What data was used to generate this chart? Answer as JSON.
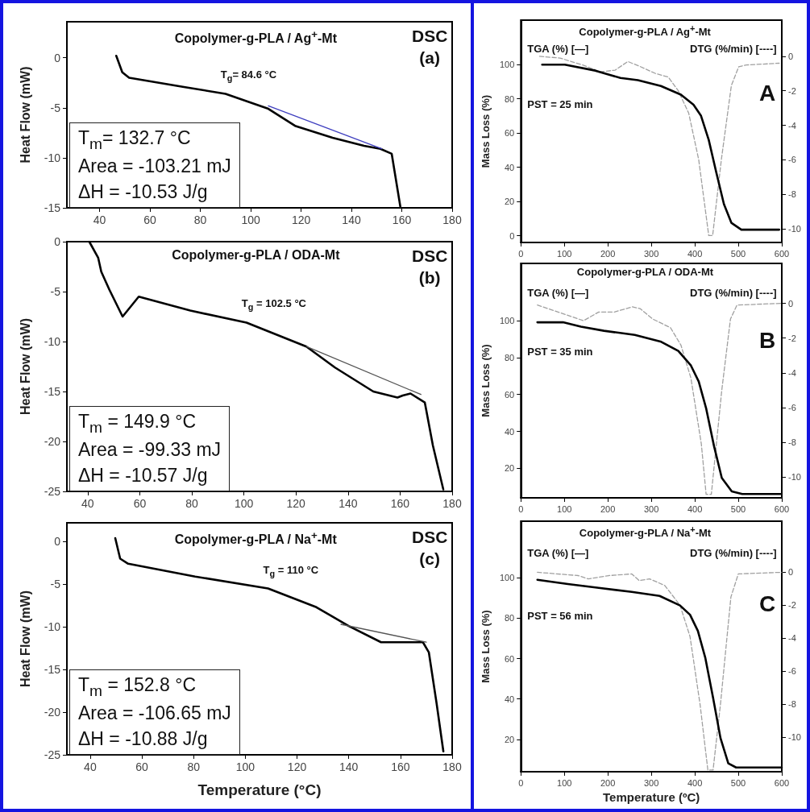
{
  "chart_data": [
    {
      "type": "line",
      "title": "Copolymer-g-PLA / Ag$^{+}$-Mt",
      "ylabel": "Heat Flow (mW)",
      "annotations": [
        "DSC",
        "(a)",
        {
          "text": "T$_{g}$= 84.6 °C",
          "x": 90,
          "y": -3.6
        },
        "T$_{m}$= 132.7 °C",
        "Area = -103.21 mJ",
        "ΔH = -10.53 J/g"
      ],
      "series": [
        {
          "color": "#000000",
          "x": [
            46.6,
            49,
            51.7,
            73,
            90,
            107,
            117.6,
            132.5,
            145,
            151.5,
            156,
            159.5
          ],
          "values": [
            0.2,
            -1.45,
            -2.0,
            -2.9,
            -3.6,
            -5.1,
            -6.8,
            -8.0,
            -8.8,
            -9.1,
            -9.6,
            -15
          ]
        },
        {
          "color": "#3f3fbf",
          "x": [
            107,
            152
          ],
          "values": [
            -4.8,
            -9.1
          ]
        }
      ],
      "xlim": [
        27,
        180
      ],
      "xticks": [
        40,
        60,
        80,
        100,
        120,
        140,
        160,
        180
      ],
      "ylim": [
        -15,
        3.6
      ],
      "yticks": [
        0,
        -5,
        -10,
        -15
      ]
    },
    {
      "type": "line",
      "title": "Copolymer-g-PLA / ODA-Mt",
      "ylabel": "Heat Flow (mW)",
      "annotations": [
        "DSC",
        "(b)",
        {
          "text": "T$_{g}$ = 102.5 °C",
          "x": 101,
          "y": -8.1
        },
        "T$_{m}$ = 149.9 °C",
        "Area = -99.33 mJ",
        "ΔH = -10.57 J/g"
      ],
      "series": [
        {
          "color": "#000000",
          "x": [
            40.6,
            44,
            45.2,
            48.3,
            53.4,
            59.6,
            79.4,
            101,
            124,
            135,
            149.7,
            159,
            161,
            164,
            169.5,
            172.6,
            176.6
          ],
          "values": [
            0,
            -1.6,
            -3.0,
            -4.8,
            -7.5,
            -5.5,
            -6.9,
            -8.1,
            -10.5,
            -12.6,
            -15.0,
            -15.6,
            -15.4,
            -15.2,
            -16.1,
            -20.4,
            -24.8
          ]
        },
        {
          "color": "#555555",
          "x": [
            124,
            168
          ],
          "values": [
            -10.5,
            -15.3
          ]
        }
      ],
      "xlim": [
        32,
        180
      ],
      "xticks": [
        40,
        60,
        80,
        100,
        120,
        140,
        160,
        180
      ],
      "ylim": [
        -25,
        0
      ],
      "yticks": [
        0,
        -5,
        -10,
        -15,
        -20,
        -25
      ]
    },
    {
      "type": "line",
      "title": "Copolymer-g-PLA / Na$^{+}$-Mt",
      "ylabel": "Heat Flow (mW)",
      "xlabel": "Temperature (°C)",
      "annotations": [
        "DSC",
        "(c)",
        {
          "text": "T$_{g}$ = 110 °C",
          "x": 108.8,
          "y": -5.5
        },
        "T$_{m}$ = 152.8 °C",
        "Area = -106.65 mJ",
        "ΔH = -10.88 J/g"
      ],
      "series": [
        {
          "color": "#000000",
          "x": [
            49.7,
            51.6,
            54.7,
            80.6,
            108.8,
            127.5,
            140,
            152.5,
            161,
            168.7,
            171,
            174,
            176.6
          ],
          "values": [
            0.4,
            -2.0,
            -2.6,
            -4.1,
            -5.5,
            -7.7,
            -9.9,
            -11.8,
            -11.8,
            -11.8,
            -13,
            -19,
            -24.6
          ]
        },
        {
          "color": "#555555",
          "x": [
            137,
            170
          ],
          "values": [
            -9.7,
            -11.8
          ]
        }
      ],
      "xlim": [
        31,
        180
      ],
      "xticks": [
        40,
        60,
        80,
        100,
        120,
        140,
        160,
        180
      ],
      "ylim": [
        -25,
        2.2
      ],
      "yticks": [
        0,
        -5,
        -10,
        -15,
        -20,
        -25
      ]
    },
    {
      "type": "line",
      "title": "Copolymer-g-PLA / Ag$^{+}$-Mt",
      "ylabel": "Mass Loss (%)",
      "annotations": [
        "TGA (%) [—]",
        "DTG (%/min) [----]",
        "PST = 25 min",
        "A"
      ],
      "series": [
        {
          "color": "#000000",
          "x": [
            49,
            101,
            171,
            229,
            269,
            322,
            368,
            397,
            414,
            432,
            449,
            467,
            484,
            507,
            594
          ],
          "values": [
            100,
            100,
            96.5,
            92.2,
            90.9,
            87.5,
            82.4,
            76.5,
            70.2,
            56,
            37.3,
            18.4,
            7.5,
            3.5,
            3.5
          ]
        },
        {
          "color": "#a0a0a0",
          "line_style": "dashed",
          "axis": "y2",
          "x": [
            43,
            90,
            142,
            183,
            217,
            246,
            275,
            310,
            339,
            362,
            386,
            409,
            432,
            441,
            461,
            484,
            501,
            519,
            594
          ],
          "values": [
            0,
            -0.1,
            -0.5,
            -0.9,
            -0.8,
            -0.3,
            -0.6,
            -1.0,
            -1.2,
            -2.0,
            -3.3,
            -6.0,
            -10.4,
            -10.4,
            -6.0,
            -1.7,
            -0.6,
            -0.5,
            -0.4
          ]
        }
      ],
      "xlim": [
        0,
        600
      ],
      "xticks": [
        0,
        100,
        200,
        300,
        400,
        500,
        600
      ],
      "ylim": [
        -4,
        126
      ],
      "yticks": [
        0,
        20,
        40,
        60,
        80,
        100
      ],
      "y2lim": [
        -10.8,
        2.1
      ],
      "y2ticks": [
        0,
        -2,
        -4,
        -6,
        -8,
        -10
      ]
    },
    {
      "type": "line",
      "title": "Copolymer-g-PLA / ODA-Mt",
      "ylabel": "Mass Loss (%)",
      "annotations": [
        "TGA (%) [—]",
        "DTG (%/min) [----]",
        "PST = 35 min",
        "B"
      ],
      "series": [
        {
          "color": "#000000",
          "x": [
            38,
            97,
            138,
            191,
            262,
            321,
            362,
            391,
            409,
            426,
            444,
            462,
            485,
            509,
            597
          ],
          "values": [
            99.1,
            99.1,
            96.7,
            94.5,
            92.3,
            88.7,
            83.6,
            75.7,
            67,
            52.5,
            32.2,
            14.8,
            7.5,
            6.1,
            6.1
          ]
        },
        {
          "color": "#a0a0a0",
          "line_style": "dashed",
          "axis": "y2",
          "x": [
            38,
            109,
            144,
            179,
            215,
            256,
            274,
            303,
            344,
            368,
            391,
            415,
            426,
            438,
            462,
            482,
            497,
            597
          ],
          "values": [
            -0.1,
            -0.7,
            -1.0,
            -0.5,
            -0.5,
            -0.2,
            -0.3,
            -0.9,
            -1.4,
            -2.4,
            -4.3,
            -8.1,
            -11.0,
            -11.0,
            -5.0,
            -0.9,
            -0.1,
            0
          ]
        }
      ],
      "xlim": [
        0,
        600
      ],
      "xticks": [
        0,
        100,
        200,
        300,
        400,
        500,
        600
      ],
      "ylim": [
        4,
        131
      ],
      "yticks": [
        20,
        40,
        60,
        80,
        100
      ],
      "y2lim": [
        -11.2,
        2.3
      ],
      "y2ticks": [
        0,
        -2,
        -4,
        -6,
        -8,
        -10
      ]
    },
    {
      "type": "line",
      "title": "Copolymer-g-PLA / Na$^{+}$-Mt",
      "ylabel": "Mass Loss (%)",
      "xlabel": "Temperature (ºC)",
      "annotations": [
        "TGA (%) [—]",
        "DTG (%/min) [----]",
        "PST = 56 min",
        "C"
      ],
      "series": [
        {
          "color": "#000000",
          "x": [
            38,
            108,
            179,
            255,
            319,
            366,
            389,
            407,
            424,
            442,
            459,
            477,
            495,
            600
          ],
          "values": [
            99,
            96.9,
            95,
            93,
            91,
            86.3,
            81.7,
            73.7,
            60.5,
            40.6,
            20.7,
            8.1,
            6.1,
            6.1
          ]
        },
        {
          "color": "#a0a0a0",
          "line_style": "dashed",
          "axis": "y2",
          "x": [
            38,
            132,
            155,
            202,
            255,
            272,
            296,
            331,
            366,
            389,
            412,
            430,
            442,
            459,
            483,
            500,
            600
          ],
          "values": [
            0,
            -0.2,
            -0.4,
            -0.2,
            -0.1,
            -0.5,
            -0.4,
            -0.8,
            -2.0,
            -3.9,
            -8.0,
            -12.0,
            -12.0,
            -8.0,
            -1.5,
            -0.1,
            0
          ]
        }
      ],
      "xlim": [
        0,
        600
      ],
      "xticks": [
        0,
        100,
        200,
        300,
        400,
        500,
        600
      ],
      "ylim": [
        4,
        128
      ],
      "yticks": [
        20,
        40,
        60,
        80,
        100
      ],
      "y2lim": [
        -12.1,
        3.1
      ],
      "y2ticks": [
        0,
        -2,
        -4,
        -6,
        -8,
        -10
      ]
    }
  ]
}
